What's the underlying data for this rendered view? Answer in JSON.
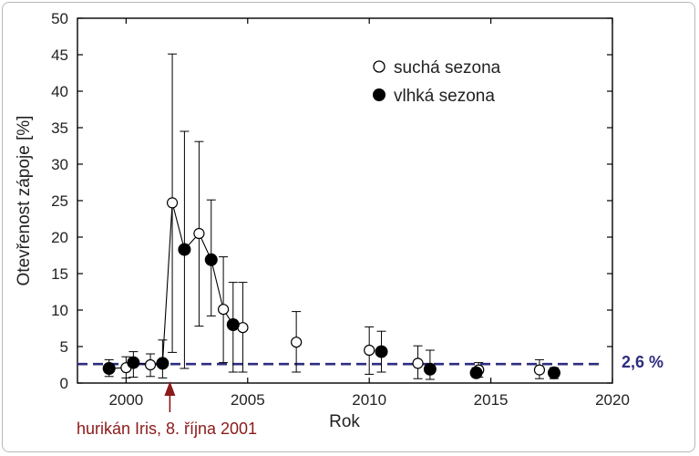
{
  "chart_data": {
    "type": "scatter",
    "xlabel": "Rok",
    "ylabel": "Otevřenost zápoje [%]",
    "xlim": [
      1998,
      2020
    ],
    "ylim": [
      0,
      50
    ],
    "x_ticks": [
      2000,
      2005,
      2010,
      2015,
      2020
    ],
    "y_ticks": [
      0,
      5,
      10,
      15,
      20,
      25,
      30,
      35,
      40,
      45,
      50
    ],
    "legend_position": "top-right",
    "series": [
      {
        "name": "suchá sezona",
        "marker": "open-circle",
        "color": "#ffffff",
        "points": [
          {
            "x": 2000.0,
            "y": 2.1,
            "low": 0.7,
            "high": 3.6
          },
          {
            "x": 2001.0,
            "y": 2.5,
            "low": 0.9,
            "high": 4.0
          },
          {
            "x": 2001.9,
            "y": 24.7,
            "low": 4.2,
            "high": 45.1
          },
          {
            "x": 2003.0,
            "y": 20.5,
            "low": 7.8,
            "high": 33.1
          },
          {
            "x": 2004.0,
            "y": 10.1,
            "low": 2.8,
            "high": 17.3
          },
          {
            "x": 2004.8,
            "y": 7.6,
            "low": 1.5,
            "high": 13.8
          },
          {
            "x": 2007.0,
            "y": 5.6,
            "low": 1.5,
            "high": 9.8
          },
          {
            "x": 2010.0,
            "y": 4.5,
            "low": 1.2,
            "high": 7.7
          },
          {
            "x": 2012.0,
            "y": 2.7,
            "low": 0.6,
            "high": 5.1
          },
          {
            "x": 2014.5,
            "y": 1.8,
            "low": 0.8,
            "high": 2.8
          },
          {
            "x": 2017.0,
            "y": 1.8,
            "low": 0.6,
            "high": 3.2
          }
        ]
      },
      {
        "name": "vlhká sezona",
        "marker": "filled-circle",
        "color": "#000000",
        "points": [
          {
            "x": 1999.3,
            "y": 2.0,
            "low": 0.9,
            "high": 3.2
          },
          {
            "x": 2000.3,
            "y": 2.8,
            "low": 0.8,
            "high": 4.3
          },
          {
            "x": 2001.5,
            "y": 2.7,
            "low": 0.7,
            "high": 5.9
          },
          {
            "x": 2002.4,
            "y": 18.3,
            "low": 2.0,
            "high": 34.5
          },
          {
            "x": 2003.5,
            "y": 16.9,
            "low": 9.2,
            "high": 25.1
          },
          {
            "x": 2004.4,
            "y": 8.0,
            "low": 1.5,
            "high": 13.8
          },
          {
            "x": 2010.5,
            "y": 4.3,
            "low": 1.5,
            "high": 7.1
          },
          {
            "x": 2012.5,
            "y": 1.9,
            "low": 0.5,
            "high": 4.5
          },
          {
            "x": 2014.4,
            "y": 1.4,
            "low": 0.8,
            "high": 2.1
          },
          {
            "x": 2017.6,
            "y": 1.4,
            "low": 0.6,
            "high": 2.1
          }
        ]
      }
    ],
    "connecting_line_x": [
      1999.3,
      2000.0,
      2000.3,
      2001.0,
      2001.5,
      2001.9,
      2002.4,
      2003.0,
      2003.5,
      2004.0,
      2004.4,
      2004.8
    ],
    "reference_line": {
      "y": 2.6,
      "label": "2,6 %",
      "color": "#2d2d80",
      "x_range": [
        1998,
        2019.5
      ]
    },
    "annotation": {
      "text": "hurikán Iris, 8. října 2001",
      "x": 2001.8,
      "color": "#8b1a1a"
    }
  }
}
